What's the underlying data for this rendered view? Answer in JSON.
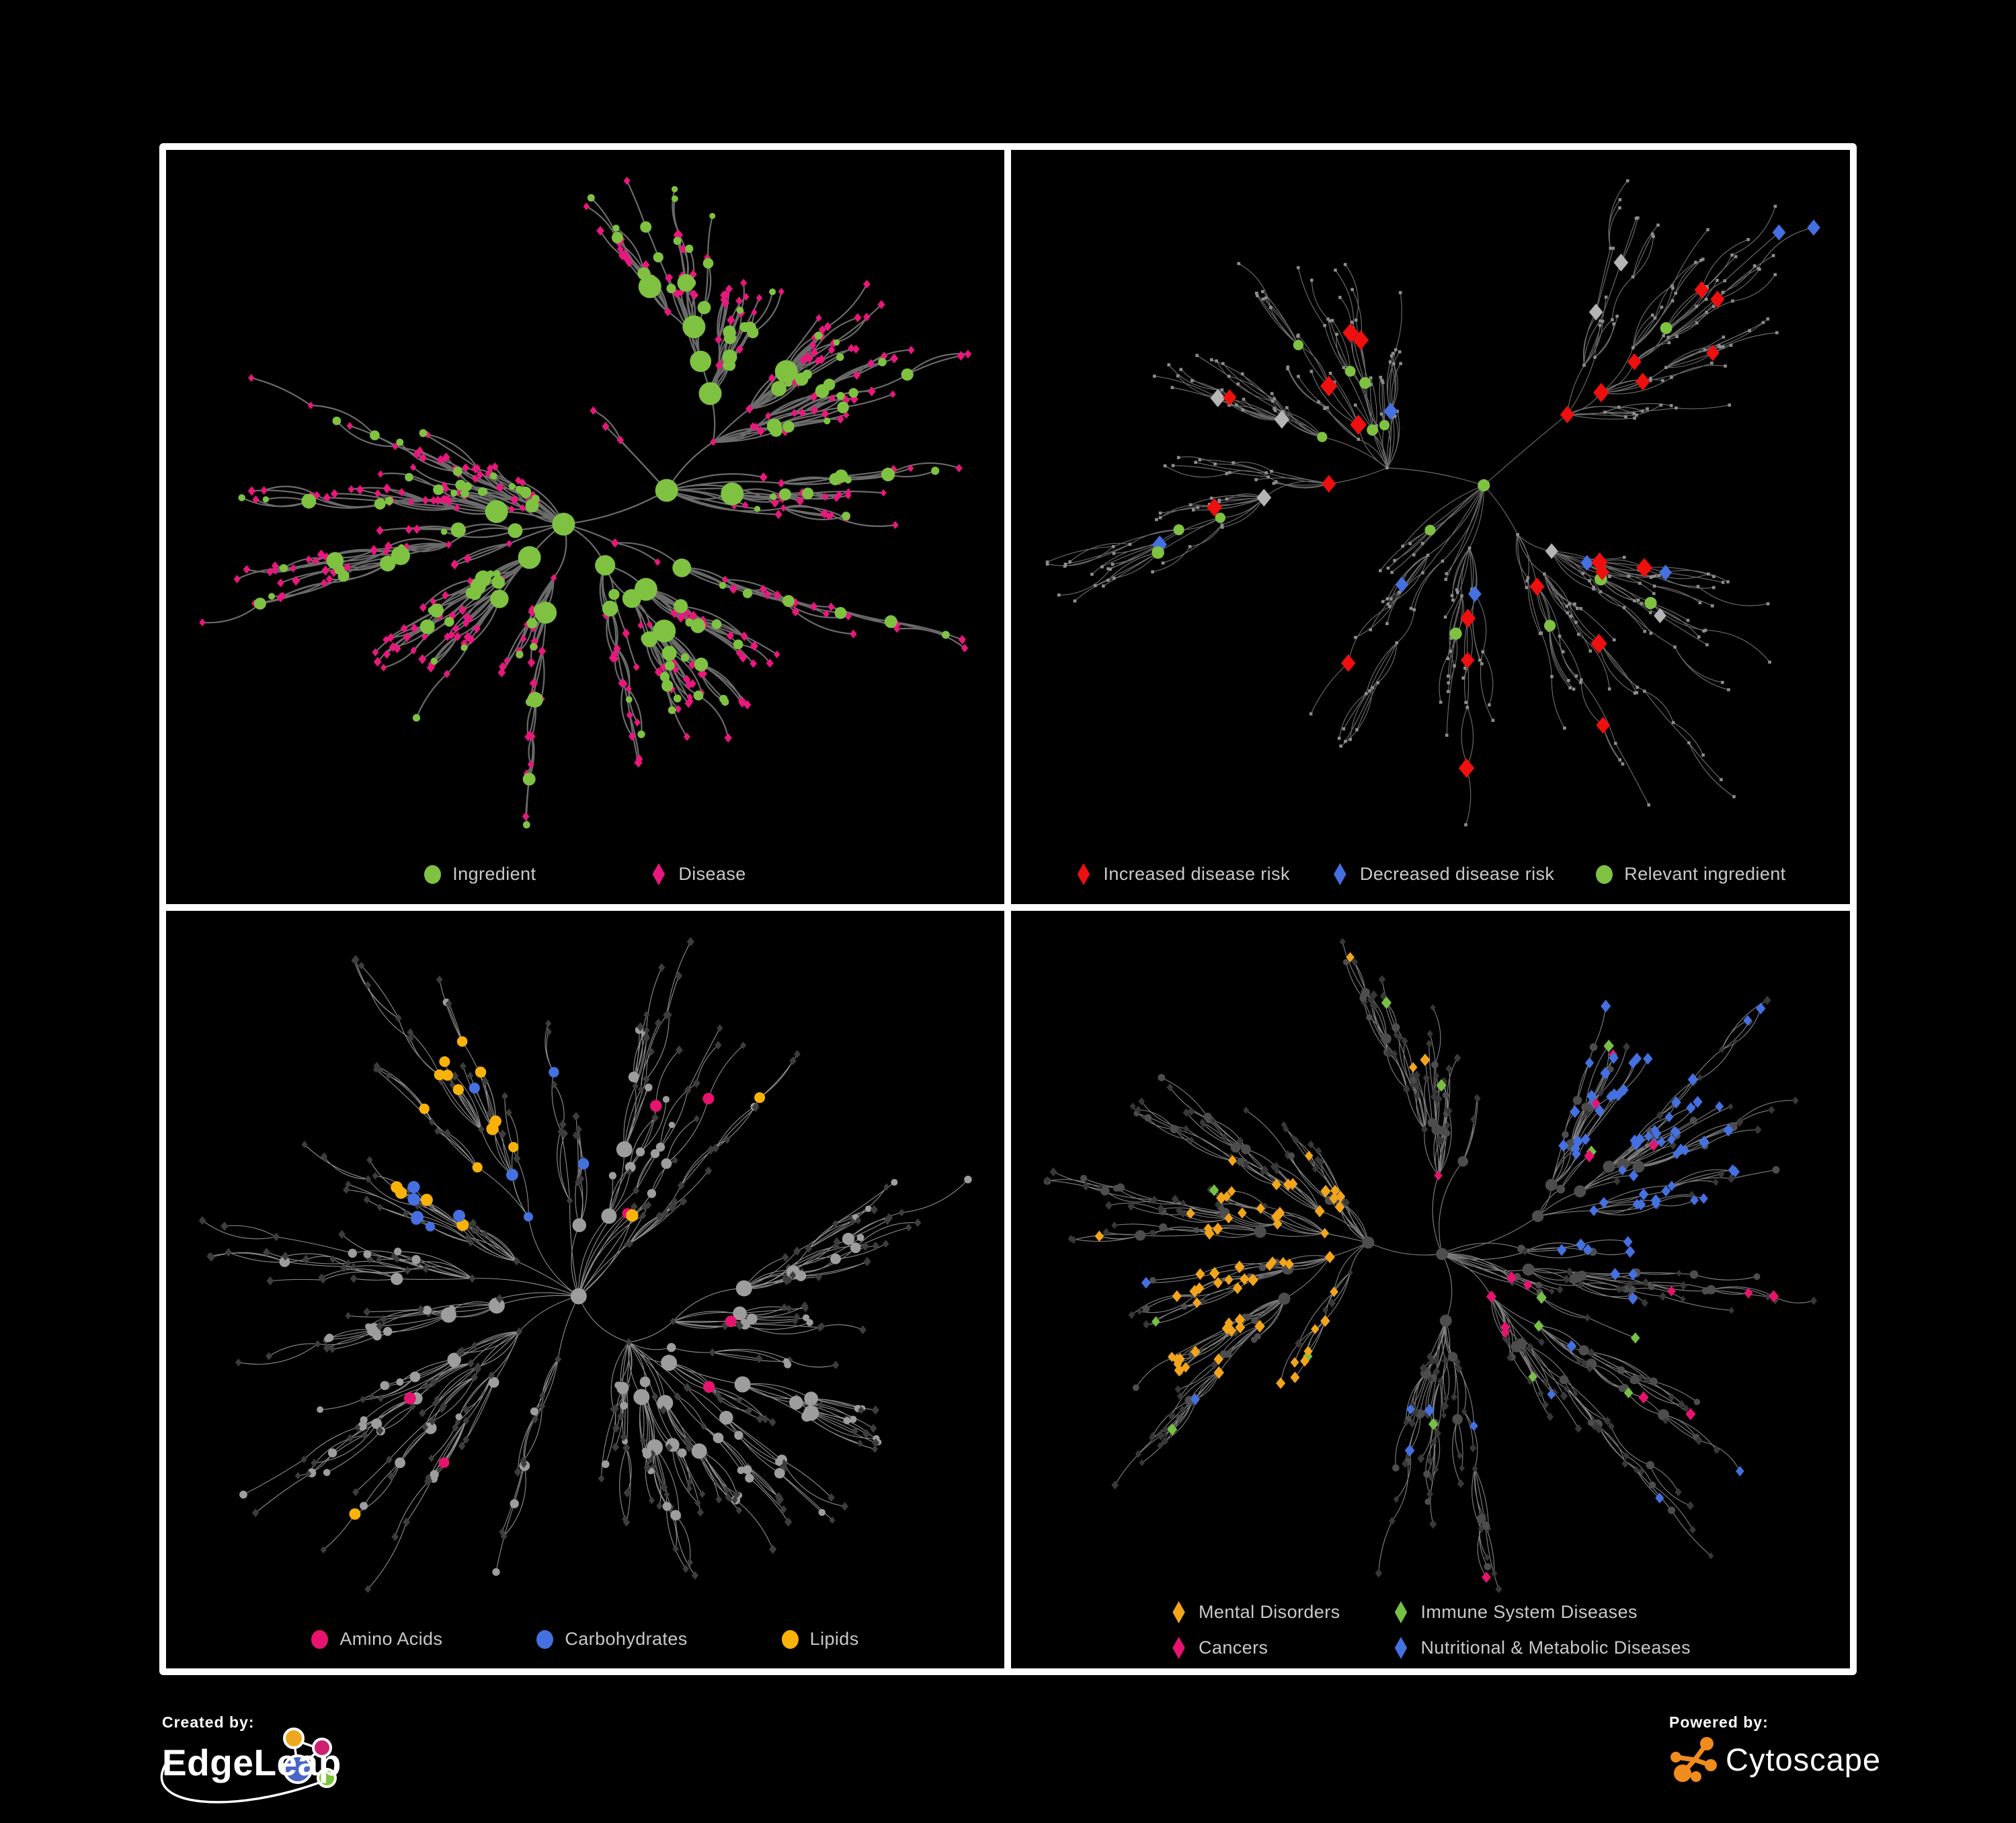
{
  "figure": {
    "background": "#000000",
    "frame_color": "#ffffff",
    "legend_text_color": "#c9c9c9"
  },
  "footer": {
    "created_by_label": "Created by:",
    "edgeleap_name": "EdgeLeap",
    "powered_by_label": "Powered by:",
    "cytoscape_name": "Cytoscape",
    "edgeleap_logo_colors": {
      "orange": "#EFA71F",
      "pink": "#CE1F70",
      "blue": "#4A66C8",
      "green": "#7CC433"
    },
    "cytoscape_logo_color": "#F08C1E"
  },
  "panels": [
    {
      "name": "ingredient-disease-network",
      "legend_gap": 170,
      "legend_columns": 1,
      "legend": [
        {
          "label": "Ingredient",
          "shape": "circle",
          "color": "#7FC241"
        },
        {
          "label": "Disease",
          "shape": "diamond",
          "color": "#E8187C"
        }
      ],
      "network": {
        "seed": 20,
        "nodes": 560,
        "hub_bias": 0.6,
        "step": 56,
        "edge": {
          "color": "#6b6b6b",
          "width": 2.2
        },
        "style": {
          "mode": "bipartite",
          "circle_color": "#7FC241",
          "diamond_color": "#E8187C"
        }
      }
    },
    {
      "name": "disease-risk-network",
      "legend_gap": 62,
      "legend_columns": 1,
      "legend": [
        {
          "label": "Increased disease risk",
          "shape": "diamond",
          "color": "#EE0F0F"
        },
        {
          "label": "Decreased disease risk",
          "shape": "diamond",
          "color": "#4470E0"
        },
        {
          "label": "Relevant ingredient",
          "shape": "circle",
          "color": "#7FC241"
        }
      ],
      "network": {
        "seed": 47,
        "nodes": 430,
        "hub_bias": 0.58,
        "step": 66,
        "edge": {
          "color": "#6c6c6c",
          "width": 1.15
        },
        "style": {
          "mode": "risk",
          "base_color": "#8d8d8d",
          "red": "#EE0F0F",
          "blue": "#4470E0",
          "silver": "#b5b5b5",
          "green": "#7FC241",
          "red_count": 24,
          "silver_count": 7,
          "blue_count": 6,
          "green_count": 16
        }
      }
    },
    {
      "name": "chemical-class-network",
      "legend_gap": 140,
      "legend_columns": 1,
      "legend": [
        {
          "label": "Amino Acids",
          "shape": "circle",
          "color": "#E8136F"
        },
        {
          "label": "Carbohydrates",
          "shape": "circle",
          "color": "#4470E0"
        },
        {
          "label": "Lipids",
          "shape": "circle",
          "color": "#F9B208"
        }
      ],
      "network": {
        "seed": 68,
        "nodes": 500,
        "hub_bias": 0.6,
        "step": 58,
        "edge": {
          "color": "#8f8f8f",
          "width": 1.1
        },
        "style": {
          "mode": "chem",
          "gray_circle": "#9d9d9d",
          "dark_diamond": "#3d3d3d",
          "orange": "#F9B208",
          "blue": "#4470E0",
          "pink": "#E8136F"
        }
      }
    },
    {
      "name": "disease-class-network",
      "legend_gap": 70,
      "legend_columns": 2,
      "legend": [
        {
          "label": "Mental Disorders",
          "shape": "diamond",
          "color": "#F2A51C"
        },
        {
          "label": "Immune System Diseases",
          "shape": "diamond",
          "color": "#77C043"
        },
        {
          "label": "Cancers",
          "shape": "diamond",
          "color": "#E8136F"
        },
        {
          "label": "Nutritional & Metabolic Diseases",
          "shape": "diamond",
          "color": "#4470E0"
        }
      ],
      "network": {
        "seed": 83,
        "nodes": 580,
        "hub_bias": 0.6,
        "step": 56,
        "edge": {
          "color": "#7e7e7e",
          "width": 1.15
        },
        "style": {
          "mode": "disease",
          "base_diamond": "#383838",
          "base_circle": "#4d4d4d",
          "orange": "#F2A51C",
          "pink": "#E8136F",
          "blue": "#4470E0",
          "green": "#77C043"
        }
      }
    }
  ]
}
